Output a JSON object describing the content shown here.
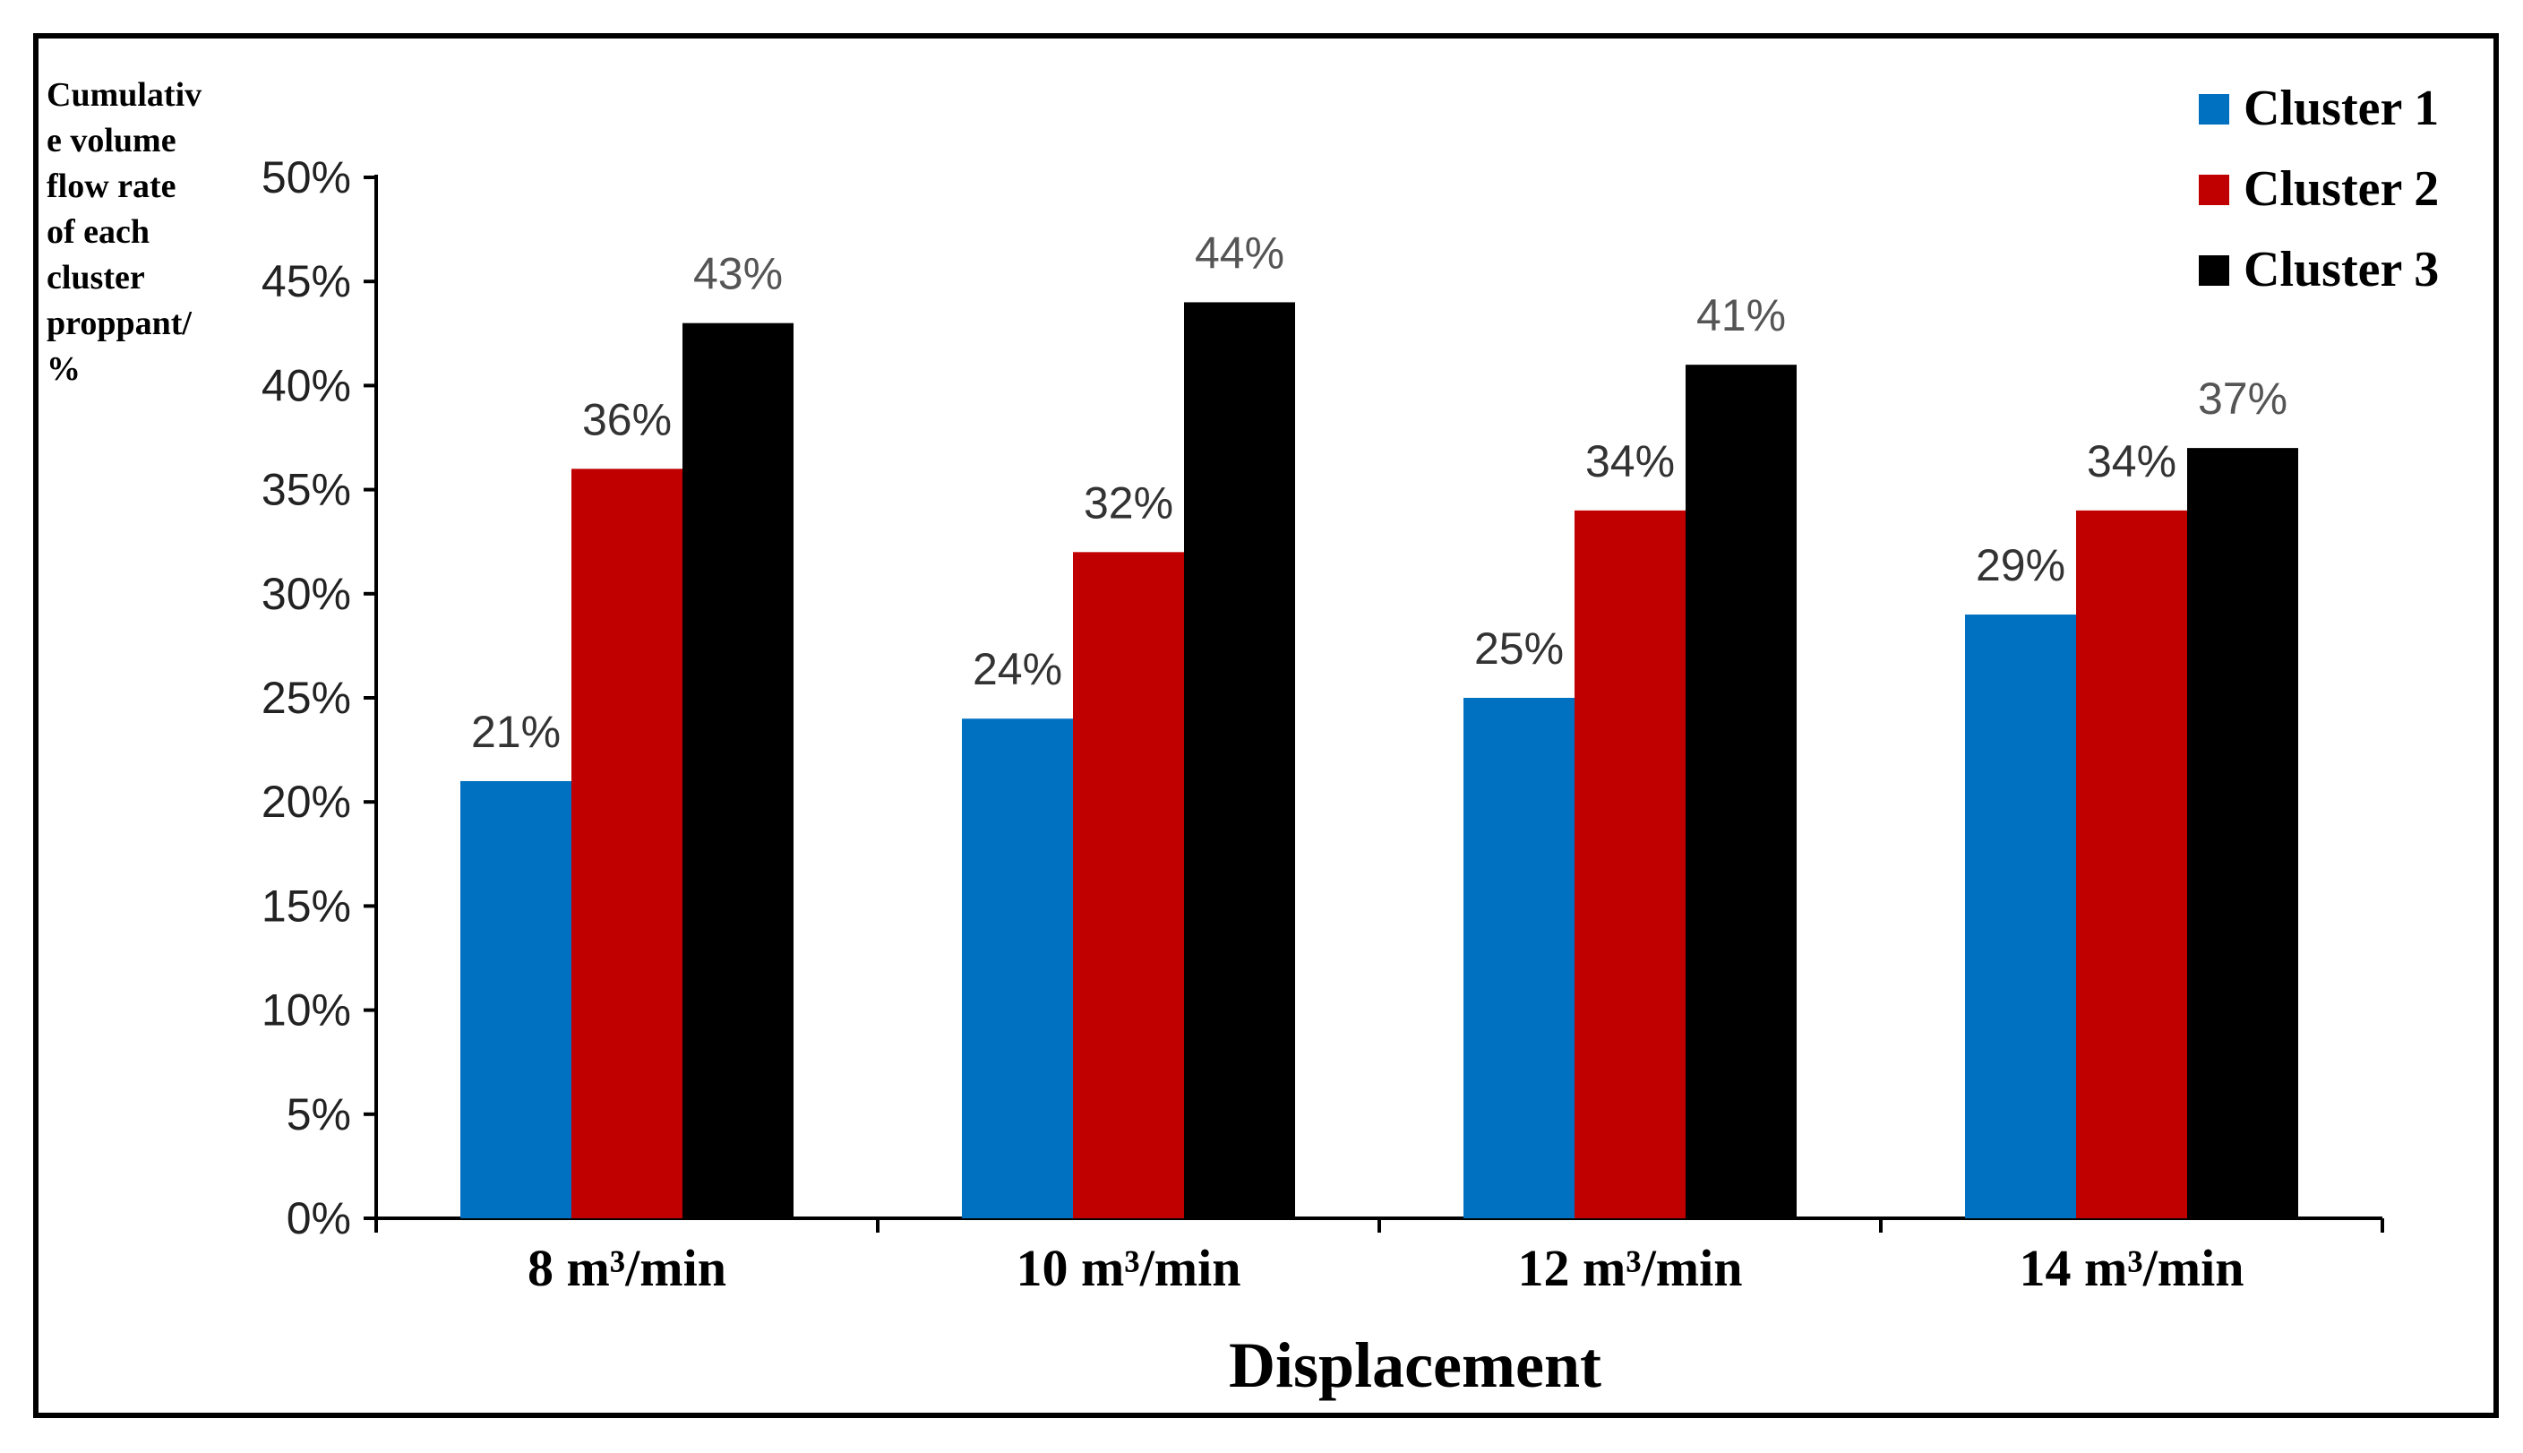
{
  "chart_data": {
    "type": "bar",
    "title": "",
    "ylabel_lines": [
      "Cumulativ",
      "e volume",
      "flow rate",
      "of each",
      "cluster",
      "proppant/",
      "%"
    ],
    "xlabel": "Displacement",
    "categories": [
      "8 m³/min",
      "10 m³/min",
      "12 m³/min",
      "14 m³/min"
    ],
    "yticks": [
      "0%",
      "5%",
      "10%",
      "15%",
      "20%",
      "25%",
      "30%",
      "35%",
      "40%",
      "45%",
      "50%"
    ],
    "ylim": [
      0,
      50
    ],
    "series": [
      {
        "name": "Cluster 1",
        "color": "#0070c0",
        "values": [
          21,
          24,
          25,
          29
        ],
        "labels": [
          "21%",
          "24%",
          "25%",
          "29%"
        ]
      },
      {
        "name": "Cluster 2",
        "color": "#c00000",
        "values": [
          36,
          32,
          34,
          34
        ],
        "labels": [
          "36%",
          "32%",
          "34%",
          "34%"
        ]
      },
      {
        "name": "Cluster 3",
        "color": "#000000",
        "values": [
          43,
          44,
          41,
          37
        ],
        "labels": [
          "43%",
          "44%",
          "41%",
          "37%"
        ]
      }
    ],
    "legend_position": "top-right",
    "grid": false
  }
}
